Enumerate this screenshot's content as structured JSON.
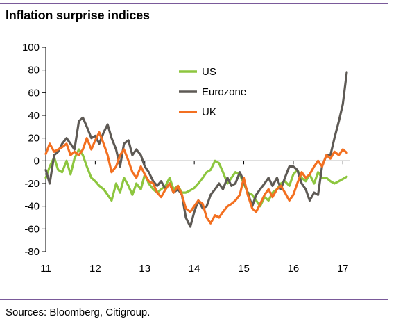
{
  "title": "Inflation surprise indices",
  "footer": "Sources: Bloomberg, Citigroup.",
  "chart_data": {
    "type": "line",
    "title": "Inflation surprise indices",
    "xlabel": "",
    "ylabel": "",
    "xlim": [
      11,
      17.15
    ],
    "ylim": [
      -80,
      100
    ],
    "x_ticks": [
      11,
      12,
      13,
      14,
      15,
      16,
      17
    ],
    "x_tick_labels": [
      "11",
      "12",
      "13",
      "14",
      "15",
      "16",
      "17"
    ],
    "y_ticks": [
      -80,
      -60,
      -40,
      -20,
      0,
      20,
      40,
      60,
      80,
      100
    ],
    "y_tick_labels": [
      "-80",
      "-60",
      "-40",
      "-20",
      "0",
      "20",
      "40",
      "60",
      "80",
      "100"
    ],
    "grid": false,
    "legend_position": "top-center",
    "series": [
      {
        "name": "US",
        "color": "#8dc63f",
        "x": [
          11.0,
          11.08,
          11.17,
          11.25,
          11.33,
          11.42,
          11.5,
          11.58,
          11.67,
          11.75,
          11.83,
          11.92,
          12.0,
          12.08,
          12.17,
          12.25,
          12.33,
          12.42,
          12.5,
          12.58,
          12.67,
          12.75,
          12.83,
          12.92,
          13.0,
          13.08,
          13.17,
          13.25,
          13.33,
          13.42,
          13.5,
          13.58,
          13.67,
          13.75,
          13.83,
          13.92,
          14.0,
          14.08,
          14.17,
          14.25,
          14.33,
          14.42,
          14.5,
          14.58,
          14.67,
          14.75,
          14.83,
          14.92,
          15.0,
          15.08,
          15.17,
          15.25,
          15.33,
          15.42,
          15.5,
          15.58,
          15.67,
          15.75,
          15.83,
          15.92,
          16.0,
          16.08,
          16.17,
          16.25,
          16.33,
          16.42,
          16.5,
          16.58,
          16.67,
          16.75,
          16.83,
          16.92,
          17.0,
          17.08
        ],
        "values": [
          -15,
          -5,
          3,
          -8,
          -10,
          0,
          -12,
          2,
          10,
          5,
          -5,
          -15,
          -18,
          -22,
          -25,
          -30,
          -35,
          -20,
          -28,
          -15,
          -22,
          -30,
          -20,
          -25,
          -12,
          -20,
          -25,
          -28,
          -25,
          -22,
          -15,
          -25,
          -22,
          -28,
          -28,
          -26,
          -24,
          -20,
          -15,
          -10,
          -8,
          0,
          -2,
          -10,
          -20,
          -15,
          -10,
          -12,
          -20,
          -28,
          -30,
          -35,
          -40,
          -32,
          -35,
          -28,
          -25,
          -20,
          -18,
          -22,
          -12,
          -8,
          -15,
          -18,
          -12,
          -20,
          -10,
          -15,
          -15,
          -18,
          -20,
          -18,
          -16,
          -14
        ]
      },
      {
        "name": "Eurozone",
        "color": "#5e5a55",
        "x": [
          11.0,
          11.08,
          11.17,
          11.25,
          11.33,
          11.42,
          11.5,
          11.58,
          11.67,
          11.75,
          11.83,
          11.92,
          12.0,
          12.08,
          12.17,
          12.25,
          12.33,
          12.42,
          12.5,
          12.58,
          12.67,
          12.75,
          12.83,
          12.92,
          13.0,
          13.08,
          13.17,
          13.25,
          13.33,
          13.42,
          13.5,
          13.58,
          13.67,
          13.75,
          13.83,
          13.92,
          14.0,
          14.08,
          14.17,
          14.25,
          14.33,
          14.42,
          14.5,
          14.58,
          14.67,
          14.75,
          14.83,
          14.92,
          15.0,
          15.08,
          15.17,
          15.25,
          15.33,
          15.42,
          15.5,
          15.58,
          15.67,
          15.75,
          15.83,
          15.92,
          16.0,
          16.08,
          16.17,
          16.25,
          16.33,
          16.42,
          16.5,
          16.58,
          16.67,
          16.75,
          16.83,
          16.92,
          17.0,
          17.08
        ],
        "values": [
          -8,
          -20,
          5,
          8,
          15,
          20,
          15,
          10,
          35,
          38,
          30,
          20,
          22,
          15,
          25,
          32,
          20,
          10,
          -5,
          15,
          18,
          5,
          10,
          5,
          -5,
          -10,
          -18,
          -22,
          -18,
          -25,
          -20,
          -28,
          -25,
          -30,
          -50,
          -58,
          -45,
          -35,
          -42,
          -40,
          -30,
          -25,
          -20,
          -25,
          -15,
          -22,
          -20,
          -10,
          -18,
          -28,
          -40,
          -30,
          -25,
          -20,
          -15,
          -22,
          -15,
          -25,
          -15,
          -5,
          -5,
          -8,
          -20,
          -25,
          -35,
          -28,
          -30,
          -5,
          5,
          5,
          20,
          35,
          50,
          78
        ]
      },
      {
        "name": "UK",
        "color": "#f37021",
        "x": [
          11.0,
          11.08,
          11.17,
          11.25,
          11.33,
          11.42,
          11.5,
          11.58,
          11.67,
          11.75,
          11.83,
          11.92,
          12.0,
          12.08,
          12.17,
          12.25,
          12.33,
          12.42,
          12.5,
          12.58,
          12.67,
          12.75,
          12.83,
          12.92,
          13.0,
          13.08,
          13.17,
          13.25,
          13.33,
          13.42,
          13.5,
          13.58,
          13.67,
          13.75,
          13.83,
          13.92,
          14.0,
          14.08,
          14.17,
          14.25,
          14.33,
          14.42,
          14.5,
          14.58,
          14.67,
          14.75,
          14.83,
          14.92,
          15.0,
          15.08,
          15.17,
          15.25,
          15.33,
          15.42,
          15.5,
          15.58,
          15.67,
          15.75,
          15.83,
          15.92,
          16.0,
          16.08,
          16.17,
          16.25,
          16.33,
          16.42,
          16.5,
          16.58,
          16.67,
          16.75,
          16.83,
          16.92,
          17.0,
          17.08
        ],
        "values": [
          6,
          15,
          8,
          10,
          12,
          15,
          5,
          8,
          5,
          10,
          20,
          10,
          18,
          25,
          15,
          5,
          -10,
          -5,
          5,
          10,
          0,
          -10,
          -15,
          -5,
          -12,
          -18,
          -20,
          -28,
          -32,
          -25,
          -20,
          -28,
          -22,
          -30,
          -42,
          -45,
          -40,
          -35,
          -38,
          -50,
          -55,
          -48,
          -50,
          -45,
          -40,
          -38,
          -35,
          -30,
          -15,
          -30,
          -42,
          -45,
          -38,
          -30,
          -25,
          -32,
          -25,
          -22,
          -28,
          -35,
          -30,
          -20,
          -10,
          -15,
          -12,
          -5,
          0,
          -5,
          5,
          2,
          8,
          5,
          10,
          7
        ]
      }
    ]
  },
  "legend": {
    "items": [
      {
        "label": "US",
        "color": "#8dc63f"
      },
      {
        "label": "Eurozone",
        "color": "#5e5a55"
      },
      {
        "label": "UK",
        "color": "#f37021"
      }
    ]
  }
}
